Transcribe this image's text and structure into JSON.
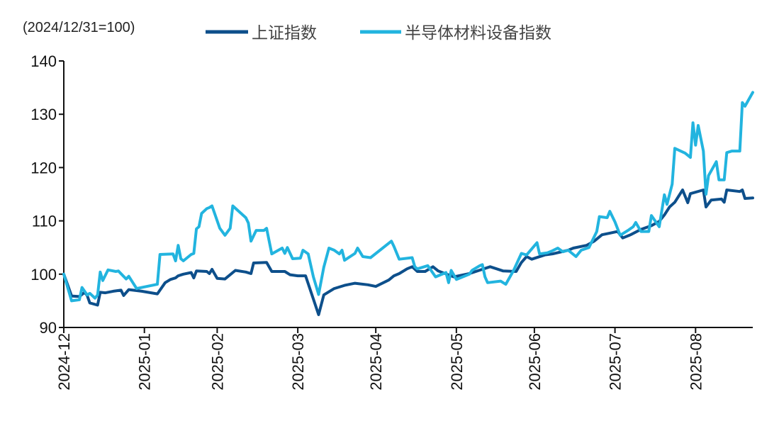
{
  "chart_data": {
    "type": "line",
    "title": "",
    "note": "(2024/12/31=100)",
    "xlabel": "",
    "ylabel": "",
    "ylim": [
      90,
      140
    ],
    "yticks": [
      90,
      100,
      110,
      120,
      130,
      140
    ],
    "xlim": [
      "2024-12-31",
      "2025-09-22"
    ],
    "xticks": [
      {
        "label": "2024-12",
        "date": "2024-12-31"
      },
      {
        "label": "2025-01",
        "date": "2025-01-31"
      },
      {
        "label": "2025-02",
        "date": "2025-02-28"
      },
      {
        "label": "2025-03",
        "date": "2025-03-31"
      },
      {
        "label": "2025-04",
        "date": "2025-04-30"
      },
      {
        "label": "2025-05",
        "date": "2025-05-31"
      },
      {
        "label": "2025-06",
        "date": "2025-06-30"
      },
      {
        "label": "2025-07",
        "date": "2025-07-31"
      },
      {
        "label": "2025-08",
        "date": "2025-08-31"
      }
    ],
    "grid": false,
    "legend_placement": "top",
    "series": [
      {
        "name": "上证指数",
        "color": "#0d4f8b",
        "points": [
          [
            "2024-12-31",
            100
          ],
          [
            "2025-01-03",
            95.9
          ],
          [
            "2025-01-06",
            95.8
          ],
          [
            "2025-01-08",
            96.6
          ],
          [
            "2025-01-09",
            96.0
          ],
          [
            "2025-01-10",
            94.6
          ],
          [
            "2025-01-13",
            94.2
          ],
          [
            "2025-01-14",
            96.6
          ],
          [
            "2025-01-16",
            96.5
          ],
          [
            "2025-01-19",
            96.8
          ],
          [
            "2025-01-22",
            97.0
          ],
          [
            "2025-01-23",
            96.0
          ],
          [
            "2025-01-25",
            97.1
          ],
          [
            "2025-01-30",
            96.8
          ],
          [
            "2025-02-05",
            96.3
          ],
          [
            "2025-02-08",
            98.4
          ],
          [
            "2025-02-10",
            99.0
          ],
          [
            "2025-02-12",
            99.3
          ],
          [
            "2025-02-13",
            99.7
          ],
          [
            "2025-02-15",
            100.0
          ],
          [
            "2025-02-18",
            100.3
          ],
          [
            "2025-02-19",
            99.3
          ],
          [
            "2025-02-20",
            100.6
          ],
          [
            "2025-02-24",
            100.5
          ],
          [
            "2025-02-25",
            100.1
          ],
          [
            "2025-02-26",
            100.9
          ],
          [
            "2025-02-28",
            99.2
          ],
          [
            "2025-03-03",
            99.1
          ],
          [
            "2025-03-07",
            100.7
          ],
          [
            "2025-03-11",
            100.4
          ],
          [
            "2025-03-13",
            100.1
          ],
          [
            "2025-03-14",
            102.1
          ],
          [
            "2025-03-19",
            102.2
          ],
          [
            "2025-03-21",
            100.5
          ],
          [
            "2025-03-26",
            100.5
          ],
          [
            "2025-03-28",
            99.9
          ],
          [
            "2025-03-31",
            99.7
          ],
          [
            "2025-04-03",
            99.7
          ],
          [
            "2025-04-08",
            92.4
          ],
          [
            "2025-04-10",
            96.1
          ],
          [
            "2025-04-14",
            97.3
          ],
          [
            "2025-04-18",
            97.9
          ],
          [
            "2025-04-22",
            98.3
          ],
          [
            "2025-04-27",
            98.0
          ],
          [
            "2025-04-30",
            97.7
          ],
          [
            "2025-05-05",
            98.9
          ],
          [
            "2025-05-07",
            99.7
          ],
          [
            "2025-05-09",
            100.1
          ],
          [
            "2025-05-12",
            101.0
          ],
          [
            "2025-05-14",
            101.4
          ],
          [
            "2025-05-16",
            100.5
          ],
          [
            "2025-05-19",
            100.5
          ],
          [
            "2025-05-22",
            101.4
          ],
          [
            "2025-05-24",
            100.6
          ],
          [
            "2025-05-30",
            99.5
          ],
          [
            "2025-06-05",
            100.1
          ],
          [
            "2025-06-13",
            101.4
          ],
          [
            "2025-06-18",
            100.6
          ],
          [
            "2025-06-23",
            100.5
          ],
          [
            "2025-06-25",
            102.2
          ],
          [
            "2025-06-27",
            103.3
          ],
          [
            "2025-06-29",
            102.8
          ],
          [
            "2025-07-04",
            103.6
          ],
          [
            "2025-07-07",
            103.8
          ],
          [
            "2025-07-13",
            104.5
          ],
          [
            "2025-07-15",
            104.9
          ],
          [
            "2025-07-20",
            105.4
          ],
          [
            "2025-07-23",
            106.2
          ],
          [
            "2025-07-26",
            107.4
          ],
          [
            "2025-07-29",
            107.7
          ],
          [
            "2025-08-01",
            108.0
          ],
          [
            "2025-08-03",
            106.8
          ],
          [
            "2025-08-06",
            107.4
          ],
          [
            "2025-08-10",
            108.4
          ],
          [
            "2025-08-14",
            109.1
          ],
          [
            "2025-08-17",
            109.9
          ],
          [
            "2025-08-19",
            111.1
          ],
          [
            "2025-08-21",
            112.6
          ],
          [
            "2025-08-23",
            113.5
          ],
          [
            "2025-08-26",
            115.8
          ],
          [
            "2025-08-28",
            113.4
          ],
          [
            "2025-08-29",
            115.1
          ],
          [
            "2025-09-03",
            115.8
          ],
          [
            "2025-09-04",
            112.6
          ],
          [
            "2025-09-06",
            113.9
          ],
          [
            "2025-09-10",
            114.1
          ],
          [
            "2025-09-11",
            113.5
          ],
          [
            "2025-09-12",
            115.8
          ],
          [
            "2025-09-17",
            115.5
          ],
          [
            "2025-09-18",
            115.8
          ],
          [
            "2025-09-19",
            114.2
          ],
          [
            "2025-09-22",
            114.3
          ]
        ]
      },
      {
        "name": "半导体材料设备指数",
        "color": "#22b4df",
        "points": [
          [
            "2024-12-31",
            100
          ],
          [
            "2025-01-03",
            95.0
          ],
          [
            "2025-01-06",
            95.2
          ],
          [
            "2025-01-07",
            97.5
          ],
          [
            "2025-01-09",
            96.1
          ],
          [
            "2025-01-10",
            96.4
          ],
          [
            "2025-01-12",
            95.5
          ],
          [
            "2025-01-13",
            96.1
          ],
          [
            "2025-01-14",
            100.4
          ],
          [
            "2025-01-15",
            98.8
          ],
          [
            "2025-01-17",
            100.8
          ],
          [
            "2025-01-20",
            100.5
          ],
          [
            "2025-01-21",
            100.6
          ],
          [
            "2025-01-24",
            99.1
          ],
          [
            "2025-01-25",
            99.6
          ],
          [
            "2025-01-28",
            97.3
          ],
          [
            "2025-02-05",
            98.1
          ],
          [
            "2025-02-06",
            103.7
          ],
          [
            "2025-02-11",
            103.8
          ],
          [
            "2025-02-12",
            102.5
          ],
          [
            "2025-02-13",
            105.4
          ],
          [
            "2025-02-14",
            102.9
          ],
          [
            "2025-02-15",
            102.5
          ],
          [
            "2025-02-18",
            103.7
          ],
          [
            "2025-02-19",
            103.9
          ],
          [
            "2025-02-20",
            108.5
          ],
          [
            "2025-02-21",
            108.9
          ],
          [
            "2025-02-22",
            111.4
          ],
          [
            "2025-02-24",
            112.3
          ],
          [
            "2025-02-25",
            112.5
          ],
          [
            "2025-02-26",
            112.8
          ],
          [
            "2025-03-01",
            108.6
          ],
          [
            "2025-03-03",
            107.3
          ],
          [
            "2025-03-05",
            108.6
          ],
          [
            "2025-03-06",
            112.8
          ],
          [
            "2025-03-11",
            110.6
          ],
          [
            "2025-03-12",
            109.6
          ],
          [
            "2025-03-13",
            106.2
          ],
          [
            "2025-03-15",
            108.2
          ],
          [
            "2025-03-18",
            108.2
          ],
          [
            "2025-03-19",
            108.6
          ],
          [
            "2025-03-21",
            103.8
          ],
          [
            "2025-03-25",
            104.9
          ],
          [
            "2025-03-26",
            103.9
          ],
          [
            "2025-03-27",
            105.0
          ],
          [
            "2025-03-29",
            102.9
          ],
          [
            "2025-04-01",
            103.0
          ],
          [
            "2025-04-02",
            104.5
          ],
          [
            "2025-04-04",
            103.8
          ],
          [
            "2025-04-06",
            99.5
          ],
          [
            "2025-04-08",
            96.2
          ],
          [
            "2025-04-10",
            101.3
          ],
          [
            "2025-04-12",
            104.9
          ],
          [
            "2025-04-14",
            104.5
          ],
          [
            "2025-04-16",
            103.8
          ],
          [
            "2025-04-17",
            104.5
          ],
          [
            "2025-04-18",
            102.6
          ],
          [
            "2025-04-22",
            103.9
          ],
          [
            "2025-04-23",
            104.9
          ],
          [
            "2025-04-25",
            103.3
          ],
          [
            "2025-04-28",
            103.1
          ],
          [
            "2025-05-06",
            106.2
          ],
          [
            "2025-05-07",
            105.2
          ],
          [
            "2025-05-09",
            102.8
          ],
          [
            "2025-05-14",
            103.1
          ],
          [
            "2025-05-15",
            101.4
          ],
          [
            "2025-05-16",
            101.0
          ],
          [
            "2025-05-20",
            101.6
          ],
          [
            "2025-05-23",
            99.5
          ],
          [
            "2025-05-27",
            100.3
          ],
          [
            "2025-05-28",
            98.4
          ],
          [
            "2025-05-29",
            100.7
          ],
          [
            "2025-05-31",
            99.0
          ],
          [
            "2025-06-05",
            100.0
          ],
          [
            "2025-06-06",
            100.7
          ],
          [
            "2025-06-09",
            101.6
          ],
          [
            "2025-06-10",
            101.8
          ],
          [
            "2025-06-11",
            99.5
          ],
          [
            "2025-06-12",
            98.4
          ],
          [
            "2025-06-17",
            98.7
          ],
          [
            "2025-06-19",
            98.1
          ],
          [
            "2025-06-22",
            100.7
          ],
          [
            "2025-06-25",
            103.9
          ],
          [
            "2025-06-27",
            103.6
          ],
          [
            "2025-07-01",
            105.9
          ],
          [
            "2025-07-02",
            103.8
          ],
          [
            "2025-07-05",
            104.0
          ],
          [
            "2025-07-07",
            104.4
          ],
          [
            "2025-07-09",
            104.9
          ],
          [
            "2025-07-11",
            104.2
          ],
          [
            "2025-07-13",
            104.5
          ],
          [
            "2025-07-16",
            103.3
          ],
          [
            "2025-07-18",
            104.5
          ],
          [
            "2025-07-21",
            105.0
          ],
          [
            "2025-07-24",
            108.0
          ],
          [
            "2025-07-25",
            110.8
          ],
          [
            "2025-07-28",
            110.6
          ],
          [
            "2025-07-29",
            111.8
          ],
          [
            "2025-07-31",
            109.8
          ],
          [
            "2025-08-02",
            107.3
          ],
          [
            "2025-08-05",
            108.2
          ],
          [
            "2025-08-07",
            108.9
          ],
          [
            "2025-08-08",
            109.7
          ],
          [
            "2025-08-10",
            108.0
          ],
          [
            "2025-08-13",
            108.0
          ],
          [
            "2025-08-14",
            111.0
          ],
          [
            "2025-08-17",
            108.9
          ],
          [
            "2025-08-19",
            114.9
          ],
          [
            "2025-08-20",
            113.1
          ],
          [
            "2025-08-22",
            116.9
          ],
          [
            "2025-08-23",
            123.6
          ],
          [
            "2025-08-27",
            122.7
          ],
          [
            "2025-08-29",
            121.9
          ],
          [
            "2025-08-30",
            128.4
          ],
          [
            "2025-08-31",
            124.2
          ],
          [
            "2025-09-01",
            127.9
          ],
          [
            "2025-09-03",
            123.1
          ],
          [
            "2025-09-04",
            115.0
          ],
          [
            "2025-09-05",
            118.5
          ],
          [
            "2025-09-08",
            121.1
          ],
          [
            "2025-09-09",
            117.7
          ],
          [
            "2025-09-11",
            117.7
          ],
          [
            "2025-09-12",
            122.8
          ],
          [
            "2025-09-14",
            123.1
          ],
          [
            "2025-09-17",
            123.1
          ],
          [
            "2025-09-18",
            132.2
          ],
          [
            "2025-09-19",
            131.5
          ],
          [
            "2025-09-22",
            134.1
          ]
        ]
      }
    ]
  }
}
